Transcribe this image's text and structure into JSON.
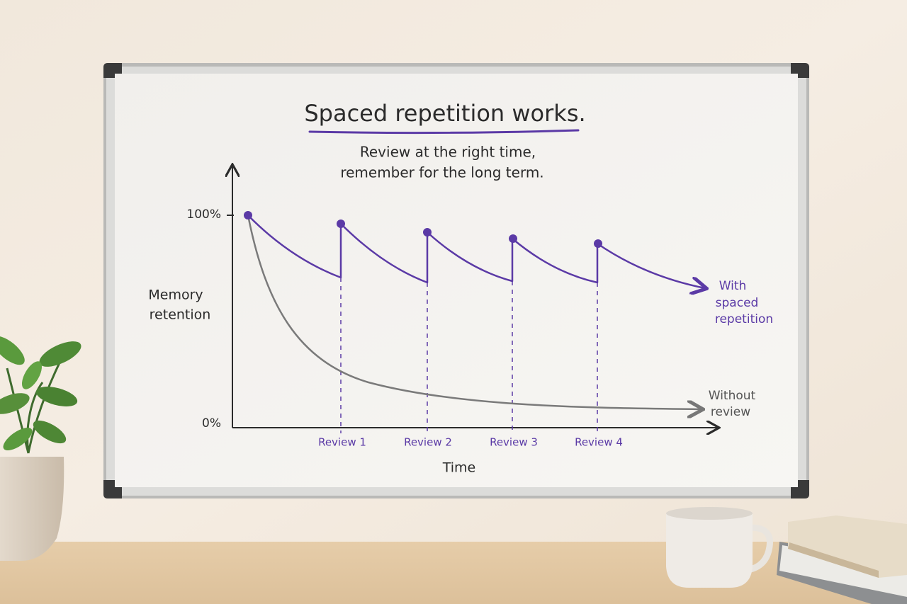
{
  "title": "Spaced repetition works.",
  "subtitle": [
    "Review at the right time,",
    "remember for the long term."
  ],
  "y_axis_label": [
    "Memory",
    "retention"
  ],
  "y_ticks": [
    "100%",
    "0%"
  ],
  "x_axis_label": "Time",
  "reviews": [
    "Review 1",
    "Review 2",
    "Review 3",
    "Review 4"
  ],
  "with_label": [
    "With",
    "spaced",
    "repetition"
  ],
  "without_label": [
    "Without",
    "review"
  ]
}
